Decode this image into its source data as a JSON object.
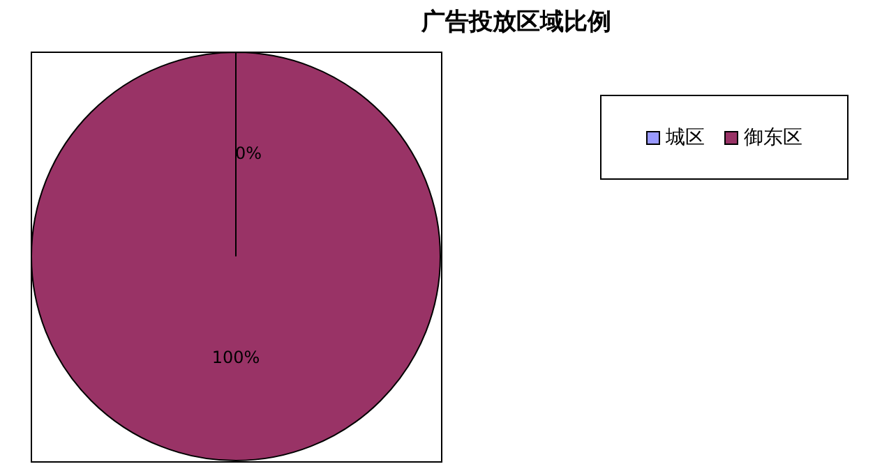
{
  "chart_data": {
    "type": "pie",
    "title": "广告投放区域比例",
    "categories": [
      "城区",
      "御东区"
    ],
    "values": [
      0,
      100
    ],
    "colors": [
      "#9999ff",
      "#993366"
    ],
    "value_labels": [
      "0%",
      "100%"
    ],
    "legend": "top right"
  }
}
